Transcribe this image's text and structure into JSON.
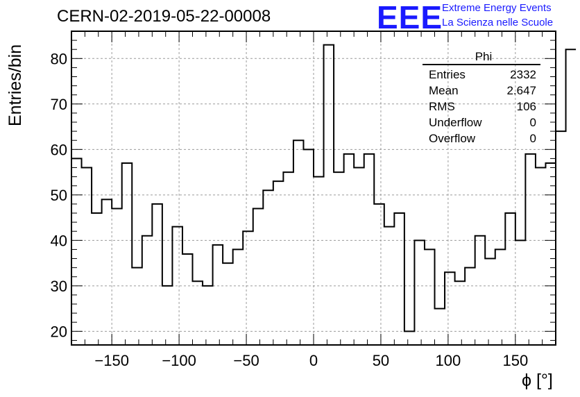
{
  "header": {
    "run_title": "CERN-02-2019-05-22-00008",
    "logo_text": "EEE",
    "logo_line1": "Extreme Energy Events",
    "logo_line2": "La Scienza nelle Scuole",
    "logo_color": "#1a1aff"
  },
  "stats_box": {
    "title": "Phi",
    "rows": [
      {
        "label": "Entries",
        "value": "2332"
      },
      {
        "label": "Mean",
        "value": "2.647"
      },
      {
        "label": "RMS",
        "value": "106"
      },
      {
        "label": "Underflow",
        "value": "0"
      },
      {
        "label": "Overflow",
        "value": "0"
      }
    ]
  },
  "chart_data": {
    "type": "histogram",
    "xlabel": "ϕ [°]",
    "ylabel": "Entries/bin",
    "xlim": [
      -180,
      180
    ],
    "ylim": [
      17,
      86
    ],
    "bin_width": 7.5,
    "x_ticks": [
      -150,
      -100,
      -50,
      0,
      50,
      100,
      150
    ],
    "x_tick_labels": [
      "−150",
      "−100",
      "−50",
      "0",
      "50",
      "100",
      "150"
    ],
    "y_ticks": [
      20,
      30,
      40,
      50,
      60,
      70,
      80
    ],
    "grid": true,
    "bin_edges_start": -180,
    "values": [
      58,
      56,
      46,
      49,
      47,
      57,
      34,
      41,
      48,
      30,
      43,
      37,
      31,
      30,
      39,
      35,
      38,
      42,
      47,
      51,
      53,
      55,
      62,
      60,
      54,
      83,
      55,
      59,
      56,
      59,
      48,
      43,
      46,
      20,
      40,
      38,
      25,
      33,
      31,
      34,
      41,
      36,
      38,
      46,
      40,
      59,
      56,
      57,
      64,
      82
    ]
  }
}
